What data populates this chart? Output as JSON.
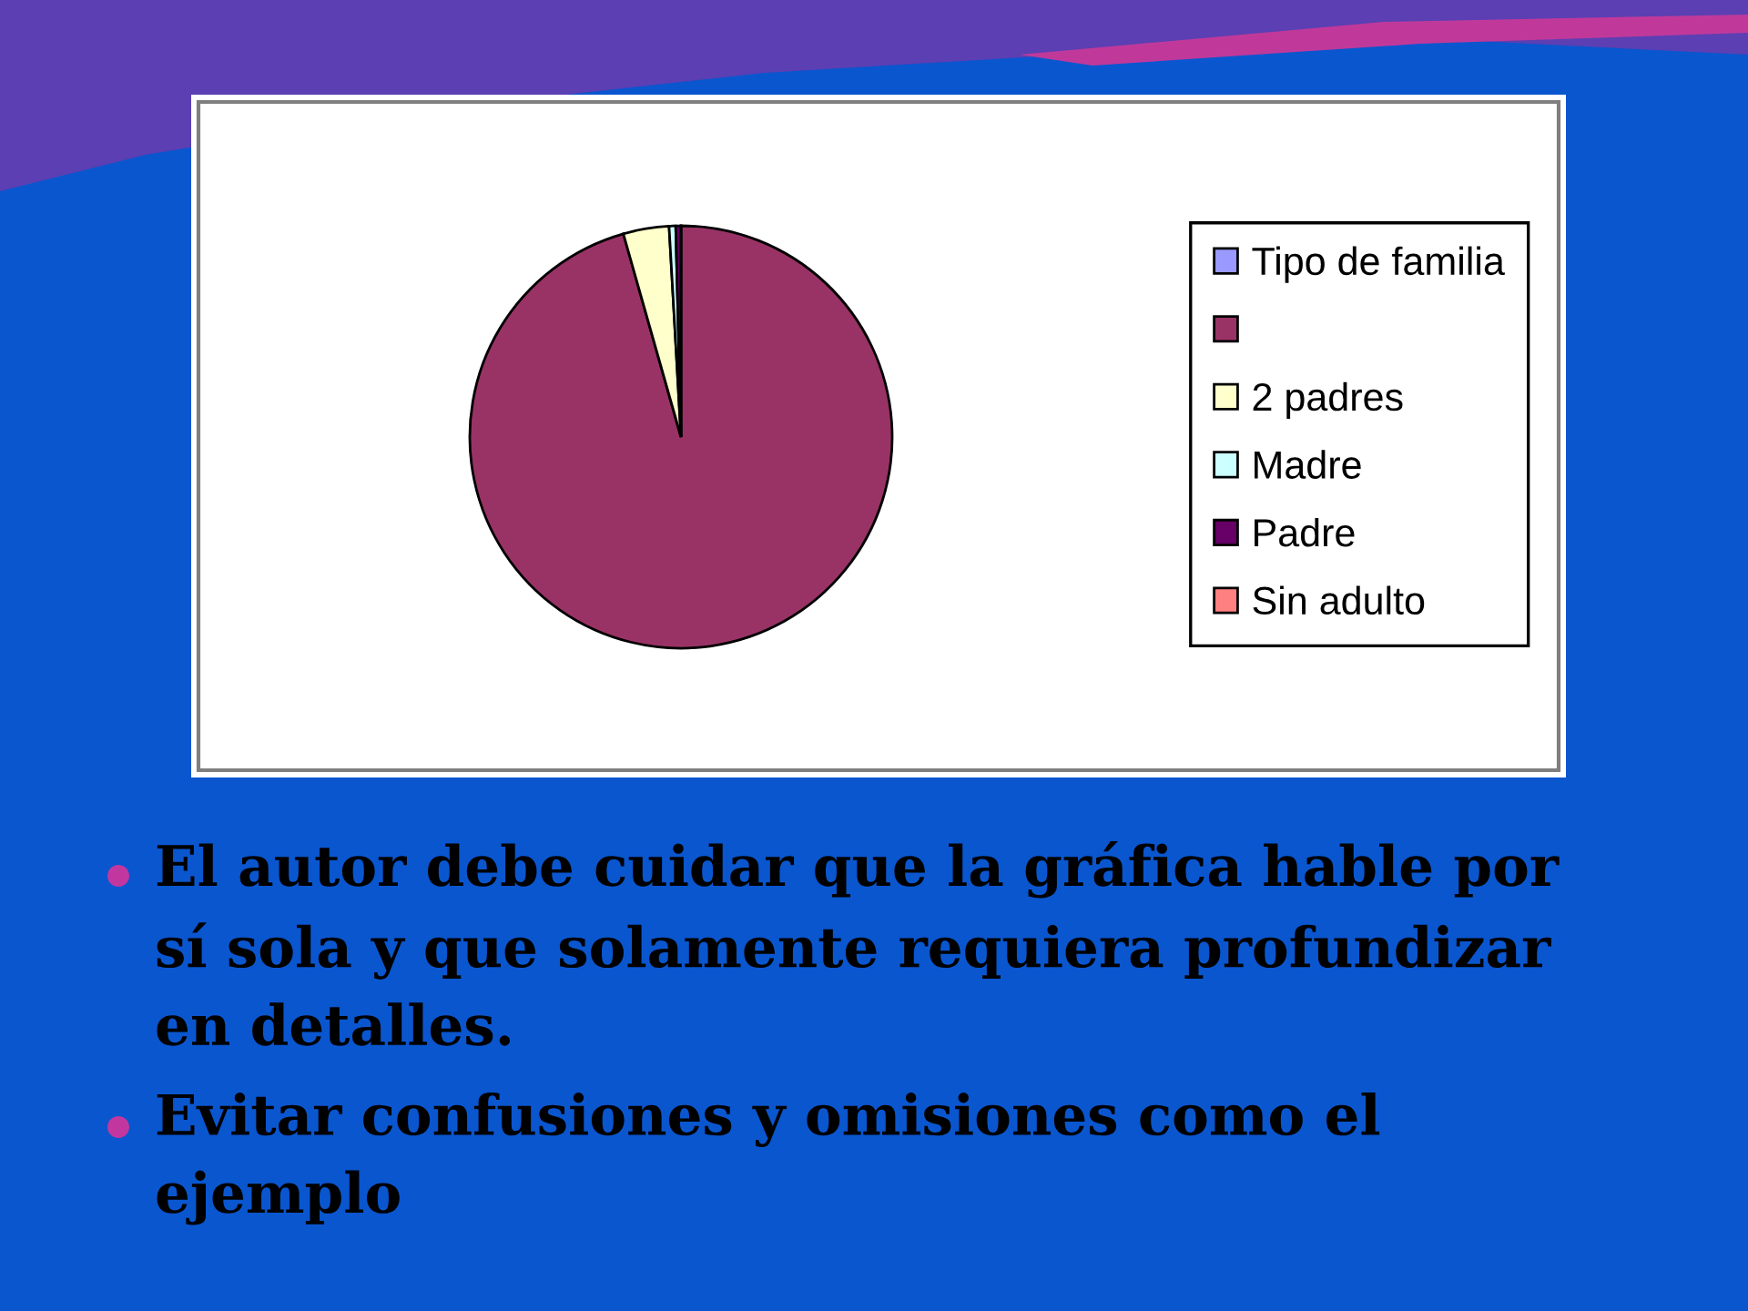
{
  "chart_data": {
    "type": "pie",
    "categories": [
      "Tipo de familia",
      null,
      "2 padres",
      "Madre",
      "Padre",
      "Sin adulto"
    ],
    "values": [
      0,
      95.6,
      3.5,
      0.5,
      0.4,
      0
    ],
    "colors": [
      "#9999ff",
      "#993366",
      "#ffffcc",
      "#ccffff",
      "#660066",
      "#ff8080"
    ],
    "legend": "right",
    "annotations": [
      "El autor debe cuidar que la gráfica hable por sí sola y que solamente requiera profundizar en detalles.",
      "Evitar confusiones y omisiones como el ejemplo"
    ]
  }
}
